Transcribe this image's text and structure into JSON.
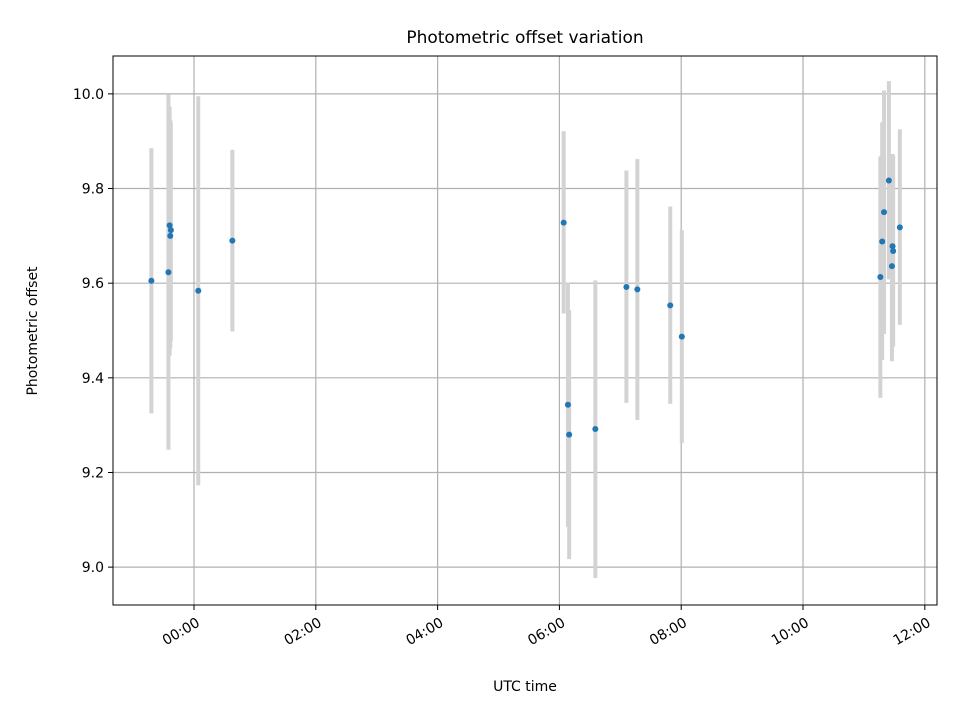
{
  "chart_data": {
    "type": "scatter",
    "title": "Photometric offset variation",
    "xlabel": "UTC time",
    "ylabel": "Photometric offset",
    "x_unit": "hours (UTC)",
    "xlim": [
      -1.33,
      12.2
    ],
    "ylim": [
      8.92,
      10.08
    ],
    "x_ticks": [
      0,
      2,
      4,
      6,
      8,
      10,
      12
    ],
    "x_tick_labels": [
      "00:00",
      "02:00",
      "04:00",
      "06:00",
      "08:00",
      "10:00",
      "12:00"
    ],
    "y_ticks": [
      9.0,
      9.2,
      9.4,
      9.6,
      9.8,
      10.0
    ],
    "y_tick_labels": [
      "9.0",
      "9.2",
      "9.4",
      "9.6",
      "9.8",
      "10.0"
    ],
    "grid": true,
    "legend": "none",
    "colors": {
      "point": "#1f77b4",
      "errorbar": "#d3d3d3",
      "grid": "#b0b0b0"
    },
    "points": [
      {
        "x": -0.7,
        "y": 9.605,
        "err_low": 9.325,
        "err_high": 9.885
      },
      {
        "x": -0.42,
        "y": 9.623,
        "err_low": 9.248,
        "err_high": 9.998
      },
      {
        "x": -0.4,
        "y": 9.722,
        "err_low": 9.447,
        "err_high": 9.973
      },
      {
        "x": -0.39,
        "y": 9.7,
        "err_low": 9.462,
        "err_high": 9.945
      },
      {
        "x": -0.38,
        "y": 9.712,
        "err_low": 9.478,
        "err_high": 9.94
      },
      {
        "x": 0.07,
        "y": 9.584,
        "err_low": 9.173,
        "err_high": 9.995
      },
      {
        "x": 0.63,
        "y": 9.69,
        "err_low": 9.498,
        "err_high": 9.882
      },
      {
        "x": 6.07,
        "y": 9.728,
        "err_low": 9.536,
        "err_high": 9.921
      },
      {
        "x": 6.14,
        "y": 9.343,
        "err_low": 9.085,
        "err_high": 9.601
      },
      {
        "x": 6.16,
        "y": 9.28,
        "err_low": 9.017,
        "err_high": 9.543
      },
      {
        "x": 6.59,
        "y": 9.292,
        "err_low": 8.977,
        "err_high": 9.606
      },
      {
        "x": 7.1,
        "y": 9.592,
        "err_low": 9.347,
        "err_high": 9.838
      },
      {
        "x": 7.28,
        "y": 9.587,
        "err_low": 9.311,
        "err_high": 9.862
      },
      {
        "x": 7.82,
        "y": 9.553,
        "err_low": 9.345,
        "err_high": 9.762
      },
      {
        "x": 8.01,
        "y": 9.487,
        "err_low": 9.262,
        "err_high": 9.712
      },
      {
        "x": 11.27,
        "y": 9.613,
        "err_low": 9.358,
        "err_high": 9.868
      },
      {
        "x": 11.3,
        "y": 9.688,
        "err_low": 9.438,
        "err_high": 9.94
      },
      {
        "x": 11.33,
        "y": 9.75,
        "err_low": 9.493,
        "err_high": 10.007
      },
      {
        "x": 11.41,
        "y": 9.817,
        "err_low": 9.608,
        "err_high": 10.027
      },
      {
        "x": 11.46,
        "y": 9.636,
        "err_low": 9.435,
        "err_high": 9.838
      },
      {
        "x": 11.47,
        "y": 9.678,
        "err_low": 9.483,
        "err_high": 9.873
      },
      {
        "x": 11.48,
        "y": 9.668,
        "err_low": 9.466,
        "err_high": 9.87
      },
      {
        "x": 11.59,
        "y": 9.718,
        "err_low": 9.512,
        "err_high": 9.925
      }
    ]
  }
}
